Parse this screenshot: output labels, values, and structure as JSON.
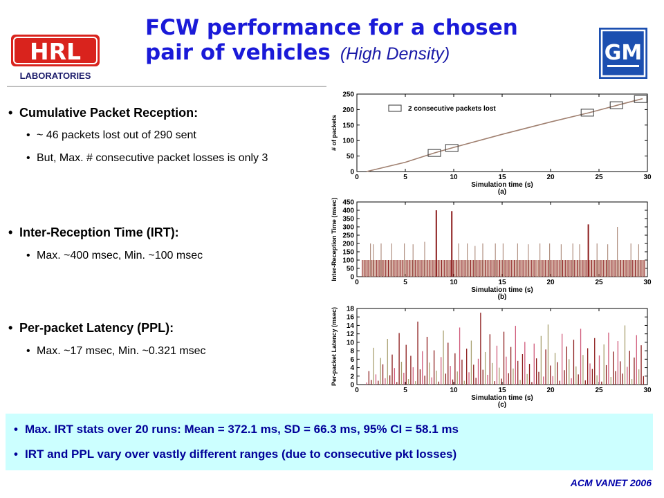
{
  "header": {
    "title_line1": "FCW performance for a chosen",
    "title_line2": "pair of vehicles",
    "title_sub": "(High Density)",
    "hrl_logo_text": "HRL",
    "hrl_logo_subtext": "LABORATORIES",
    "gm_logo_text": "GM"
  },
  "bullets": [
    {
      "label": "Cumulative Packet Reception:",
      "subs": [
        "~ 46 packets lost out of 290 sent",
        "But, Max. # consecutive packet losses is only 3"
      ]
    },
    {
      "label": "Inter-Reception Time (IRT):",
      "subs": [
        "Max. ~400 msec, Min. ~100 msec"
      ]
    },
    {
      "label": "Per-packet Latency (PPL):",
      "subs": [
        "Max. ~17 msec, Min. ~0.321 msec"
      ]
    }
  ],
  "summary": [
    "Max. IRT stats over 20 runs: Mean = 372.1 ms, SD = 66.3 ms, 95% CI = 58.1 ms",
    "IRT and PPL vary over vastly different ranges (due to consecutive pkt losses)"
  ],
  "footer": "ACM VANET 2006",
  "colors": {
    "title": "#1a1ad8",
    "summary_bg": "#ccffff",
    "summary_text": "#000099",
    "footer": "#0000aa",
    "line": "#a08070",
    "bar_dark": "#8b1a1a"
  },
  "chart_data": [
    {
      "type": "line",
      "xlabel": "Simulation time (s)",
      "caption": "(a)",
      "ylabel": "# of packets",
      "xlim": [
        0,
        30
      ],
      "ylim": [
        0,
        250
      ],
      "xticks": [
        0,
        5,
        10,
        15,
        20,
        25,
        30
      ],
      "yticks": [
        0,
        50,
        100,
        150,
        200,
        250
      ],
      "legend": "2 consecutive packets lost",
      "series": [
        {
          "x": [
            1,
            5,
            8,
            10,
            15,
            20,
            24,
            27,
            29.5
          ],
          "y": [
            0,
            30,
            60,
            78,
            120,
            160,
            190,
            215,
            235
          ]
        }
      ],
      "markers": [
        {
          "x": 8,
          "y": 60
        },
        {
          "x": 9.8,
          "y": 76
        },
        {
          "x": 23.8,
          "y": 190
        },
        {
          "x": 26.8,
          "y": 214
        },
        {
          "x": 29.3,
          "y": 234
        }
      ]
    },
    {
      "type": "bar",
      "xlabel": "Simulation time (s)",
      "caption": "(b)",
      "ylabel": "Inter-Reception Time (msec)",
      "xlim": [
        0,
        30
      ],
      "ylim": [
        0,
        450
      ],
      "xticks": [
        0,
        5,
        10,
        15,
        20,
        25,
        30
      ],
      "yticks": [
        0,
        50,
        100,
        150,
        200,
        250,
        300,
        350,
        400,
        450
      ],
      "base": 100,
      "spikes": [
        {
          "x": 1.4,
          "y": 200
        },
        {
          "x": 1.7,
          "y": 195
        },
        {
          "x": 2.5,
          "y": 200
        },
        {
          "x": 3.6,
          "y": 200
        },
        {
          "x": 4.9,
          "y": 200
        },
        {
          "x": 5.8,
          "y": 195
        },
        {
          "x": 7.0,
          "y": 210
        },
        {
          "x": 8.2,
          "y": 400
        },
        {
          "x": 9.8,
          "y": 395
        },
        {
          "x": 10.5,
          "y": 200
        },
        {
          "x": 11.4,
          "y": 200
        },
        {
          "x": 12.2,
          "y": 185
        },
        {
          "x": 13.0,
          "y": 200
        },
        {
          "x": 14.3,
          "y": 200
        },
        {
          "x": 15.1,
          "y": 200
        },
        {
          "x": 16.6,
          "y": 200
        },
        {
          "x": 17.7,
          "y": 195
        },
        {
          "x": 18.9,
          "y": 200
        },
        {
          "x": 19.9,
          "y": 200
        },
        {
          "x": 21.1,
          "y": 195
        },
        {
          "x": 22.3,
          "y": 200
        },
        {
          "x": 23.0,
          "y": 195
        },
        {
          "x": 23.9,
          "y": 315
        },
        {
          "x": 24.8,
          "y": 200
        },
        {
          "x": 25.9,
          "y": 195
        },
        {
          "x": 26.9,
          "y": 300
        },
        {
          "x": 28.3,
          "y": 200
        },
        {
          "x": 29.1,
          "y": 195
        }
      ]
    },
    {
      "type": "bar",
      "xlabel": "Simulation time (s)",
      "caption": "(c)",
      "ylabel": "Per-packet Latency (msec)",
      "xlim": [
        0,
        30
      ],
      "ylim": [
        0,
        18
      ],
      "xticks": [
        0,
        5,
        10,
        15,
        20,
        25,
        30
      ],
      "yticks": [
        0,
        2,
        4,
        6,
        8,
        10,
        12,
        14,
        16,
        18
      ],
      "values": [
        0.5,
        3.2,
        1.1,
        8.7,
        2.4,
        0.9,
        6.3,
        4.8,
        1.5,
        10.8,
        2.2,
        7.1,
        3.9,
        0.6,
        12.2,
        5.4,
        2.8,
        9.4,
        1.3,
        6.8,
        4.1,
        0.8,
        14.9,
        3.6,
        7.9,
        2.1,
        11.3,
        5.2,
        1.7,
        8.1,
        3.3,
        0.7,
        6.5,
        12.8,
        2.6,
        9.9,
        4.4,
        1.2,
        7.4,
        3.1,
        13.5,
        5.9,
        0.9,
        8.5,
        2.9,
        10.4,
        4.7,
        1.6,
        6.1,
        17.0,
        3.5,
        7.7,
        2.3,
        11.9,
        5.1,
        0.8,
        9.2,
        4.0,
        1.4,
        12.5,
        6.6,
        2.7,
        8.9,
        3.8,
        13.9,
        5.6,
        1.1,
        7.2,
        10.1,
        2.5,
        4.9,
        0.6,
        9.7,
        6.2,
        3.0,
        11.5,
        1.9,
        8.3,
        14.2,
        4.5,
        2.0,
        7.5,
        5.3,
        0.9,
        12.0,
        3.4,
        9.0,
        6.0,
        1.5,
        10.6,
        4.3,
        2.4,
        13.2,
        7.0,
        1.0,
        8.6,
        5.0,
        3.7,
        11.0,
        2.2,
        6.9,
        0.7,
        9.5,
        4.6,
        12.3,
        1.8,
        7.8,
        3.2,
        10.3,
        5.5,
        2.6,
        14.0,
        4.2,
        8.0,
        1.3,
        6.4,
        11.7,
        3.6,
        9.3,
        2.0
      ]
    }
  ]
}
